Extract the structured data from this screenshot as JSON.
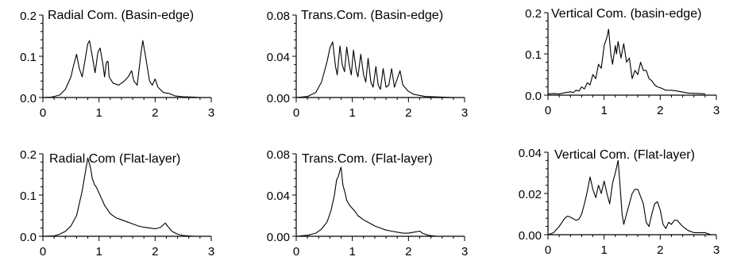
{
  "chart_data": [
    {
      "type": "line",
      "title": "Radial Com. (Basin-edge)",
      "xlim": [
        0,
        3
      ],
      "ylim": [
        0,
        0.2
      ],
      "xticks": [
        0,
        1,
        2,
        3
      ],
      "yticks": [
        0.0,
        0.1,
        0.2
      ],
      "x_tick_labels": [
        "0",
        "1",
        "2",
        "3"
      ],
      "y_tick_labels": [
        "0.0",
        "0.1",
        "0.2"
      ],
      "series": [
        {
          "points": [
            [
              0,
              0
            ],
            [
              0.15,
              0.001
            ],
            [
              0.3,
              0.006
            ],
            [
              0.4,
              0.02
            ],
            [
              0.5,
              0.05
            ],
            [
              0.55,
              0.08
            ],
            [
              0.6,
              0.105
            ],
            [
              0.65,
              0.07
            ],
            [
              0.7,
              0.05
            ],
            [
              0.75,
              0.09
            ],
            [
              0.8,
              0.13
            ],
            [
              0.83,
              0.138
            ],
            [
              0.88,
              0.1
            ],
            [
              0.93,
              0.06
            ],
            [
              0.98,
              0.11
            ],
            [
              1.02,
              0.12
            ],
            [
              1.07,
              0.08
            ],
            [
              1.1,
              0.05
            ],
            [
              1.13,
              0.085
            ],
            [
              1.16,
              0.088
            ],
            [
              1.18,
              0.05
            ],
            [
              1.25,
              0.035
            ],
            [
              1.35,
              0.03
            ],
            [
              1.45,
              0.04
            ],
            [
              1.52,
              0.05
            ],
            [
              1.58,
              0.065
            ],
            [
              1.62,
              0.04
            ],
            [
              1.68,
              0.03
            ],
            [
              1.75,
              0.11
            ],
            [
              1.78,
              0.138
            ],
            [
              1.83,
              0.1
            ],
            [
              1.9,
              0.04
            ],
            [
              1.95,
              0.03
            ],
            [
              2.0,
              0.045
            ],
            [
              2.05,
              0.025
            ],
            [
              2.15,
              0.012
            ],
            [
              2.25,
              0.01
            ],
            [
              2.35,
              0.004
            ],
            [
              2.5,
              0.002
            ],
            [
              2.7,
              0.001
            ],
            [
              2.8,
              0
            ]
          ]
        }
      ]
    },
    {
      "type": "line",
      "title": "Trans.Com. (Basin-edge)",
      "xlim": [
        0,
        3
      ],
      "ylim": [
        0,
        0.08
      ],
      "xticks": [
        0,
        1,
        2,
        3
      ],
      "yticks": [
        0.0,
        0.04,
        0.08
      ],
      "x_tick_labels": [
        "0",
        "1",
        "2",
        "3"
      ],
      "y_tick_labels": [
        "0.00",
        "0.04",
        "0.08"
      ],
      "series": [
        {
          "points": [
            [
              0,
              0
            ],
            [
              0.2,
              0.001
            ],
            [
              0.35,
              0.005
            ],
            [
              0.45,
              0.015
            ],
            [
              0.55,
              0.035
            ],
            [
              0.6,
              0.048
            ],
            [
              0.65,
              0.054
            ],
            [
              0.7,
              0.03
            ],
            [
              0.73,
              0.022
            ],
            [
              0.78,
              0.05
            ],
            [
              0.82,
              0.032
            ],
            [
              0.86,
              0.025
            ],
            [
              0.9,
              0.049
            ],
            [
              0.95,
              0.03
            ],
            [
              0.98,
              0.022
            ],
            [
              1.02,
              0.046
            ],
            [
              1.07,
              0.026
            ],
            [
              1.1,
              0.02
            ],
            [
              1.15,
              0.042
            ],
            [
              1.2,
              0.022
            ],
            [
              1.24,
              0.015
            ],
            [
              1.28,
              0.038
            ],
            [
              1.33,
              0.015
            ],
            [
              1.37,
              0.01
            ],
            [
              1.42,
              0.03
            ],
            [
              1.46,
              0.012
            ],
            [
              1.5,
              0.008
            ],
            [
              1.55,
              0.028
            ],
            [
              1.6,
              0.01
            ],
            [
              1.65,
              0.012
            ],
            [
              1.7,
              0.028
            ],
            [
              1.75,
              0.01
            ],
            [
              1.78,
              0.015
            ],
            [
              1.85,
              0.026
            ],
            [
              1.9,
              0.012
            ],
            [
              2.0,
              0.006
            ],
            [
              2.1,
              0.003
            ],
            [
              2.3,
              0.001
            ],
            [
              2.8,
              0
            ]
          ]
        }
      ]
    },
    {
      "type": "line",
      "title": "Vertical Com. (basin-edge)",
      "xlim": [
        0,
        3
      ],
      "ylim": [
        0,
        0.2
      ],
      "xticks": [
        0,
        1,
        2,
        3
      ],
      "yticks": [
        0.0,
        0.1,
        0.2
      ],
      "x_tick_labels": [
        "0",
        "1",
        "2",
        "3"
      ],
      "y_tick_labels": [
        "0.0",
        "0.1",
        "0.2"
      ],
      "series": [
        {
          "points": [
            [
              0,
              0.003
            ],
            [
              0.1,
              0.004
            ],
            [
              0.2,
              0.003
            ],
            [
              0.3,
              0.006
            ],
            [
              0.4,
              0.008
            ],
            [
              0.45,
              0.006
            ],
            [
              0.5,
              0.012
            ],
            [
              0.55,
              0.01
            ],
            [
              0.6,
              0.02
            ],
            [
              0.65,
              0.015
            ],
            [
              0.7,
              0.03
            ],
            [
              0.75,
              0.025
            ],
            [
              0.8,
              0.05
            ],
            [
              0.85,
              0.04
            ],
            [
              0.9,
              0.075
            ],
            [
              0.95,
              0.065
            ],
            [
              1.0,
              0.12
            ],
            [
              1.05,
              0.14
            ],
            [
              1.08,
              0.16
            ],
            [
              1.12,
              0.1
            ],
            [
              1.15,
              0.075
            ],
            [
              1.2,
              0.12
            ],
            [
              1.22,
              0.1
            ],
            [
              1.25,
              0.13
            ],
            [
              1.3,
              0.09
            ],
            [
              1.35,
              0.125
            ],
            [
              1.4,
              0.08
            ],
            [
              1.45,
              0.09
            ],
            [
              1.5,
              0.04
            ],
            [
              1.55,
              0.06
            ],
            [
              1.6,
              0.05
            ],
            [
              1.65,
              0.08
            ],
            [
              1.7,
              0.06
            ],
            [
              1.75,
              0.06
            ],
            [
              1.8,
              0.04
            ],
            [
              1.85,
              0.035
            ],
            [
              1.9,
              0.025
            ],
            [
              1.95,
              0.02
            ],
            [
              2.0,
              0.018
            ],
            [
              2.1,
              0.012
            ],
            [
              2.2,
              0.012
            ],
            [
              2.3,
              0.01
            ],
            [
              2.5,
              0.005
            ],
            [
              2.7,
              0.004
            ],
            [
              2.8,
              0.003
            ]
          ]
        }
      ]
    },
    {
      "type": "line",
      "title": "Radial Com (Flat-layer)",
      "xlim": [
        0,
        3
      ],
      "ylim": [
        0,
        0.2
      ],
      "xticks": [
        0,
        1,
        2,
        3
      ],
      "yticks": [
        0.0,
        0.1,
        0.2
      ],
      "x_tick_labels": [
        "0",
        "1",
        "2",
        "3"
      ],
      "y_tick_labels": [
        "0.0",
        "0.1",
        "0.2"
      ],
      "series": [
        {
          "points": [
            [
              0,
              0
            ],
            [
              0.2,
              0.001
            ],
            [
              0.3,
              0.005
            ],
            [
              0.4,
              0.012
            ],
            [
              0.5,
              0.025
            ],
            [
              0.6,
              0.05
            ],
            [
              0.7,
              0.11
            ],
            [
              0.75,
              0.15
            ],
            [
              0.8,
              0.19
            ],
            [
              0.85,
              0.165
            ],
            [
              0.88,
              0.14
            ],
            [
              0.92,
              0.125
            ],
            [
              0.95,
              0.12
            ],
            [
              1.0,
              0.105
            ],
            [
              1.05,
              0.09
            ],
            [
              1.1,
              0.075
            ],
            [
              1.15,
              0.065
            ],
            [
              1.2,
              0.055
            ],
            [
              1.3,
              0.045
            ],
            [
              1.4,
              0.04
            ],
            [
              1.5,
              0.035
            ],
            [
              1.6,
              0.03
            ],
            [
              1.7,
              0.025
            ],
            [
              1.8,
              0.022
            ],
            [
              1.9,
              0.02
            ],
            [
              2.0,
              0.018
            ],
            [
              2.1,
              0.022
            ],
            [
              2.18,
              0.032
            ],
            [
              2.22,
              0.025
            ],
            [
              2.3,
              0.012
            ],
            [
              2.4,
              0.005
            ],
            [
              2.5,
              0.002
            ],
            [
              2.6,
              0.001
            ],
            [
              2.7,
              0
            ]
          ]
        }
      ]
    },
    {
      "type": "line",
      "title": "Trans.Com. (Flat-layer)",
      "xlim": [
        0,
        3
      ],
      "ylim": [
        0,
        0.08
      ],
      "xticks": [
        0,
        1,
        2,
        3
      ],
      "yticks": [
        0.0,
        0.04,
        0.08
      ],
      "x_tick_labels": [
        "0",
        "1",
        "2",
        "3"
      ],
      "y_tick_labels": [
        "0.00",
        "0.04",
        "0.08"
      ],
      "series": [
        {
          "points": [
            [
              0,
              0
            ],
            [
              0.2,
              0.001
            ],
            [
              0.35,
              0.003
            ],
            [
              0.45,
              0.007
            ],
            [
              0.55,
              0.014
            ],
            [
              0.62,
              0.025
            ],
            [
              0.68,
              0.04
            ],
            [
              0.72,
              0.055
            ],
            [
              0.75,
              0.058
            ],
            [
              0.78,
              0.064
            ],
            [
              0.8,
              0.067
            ],
            [
              0.83,
              0.05
            ],
            [
              0.87,
              0.042
            ],
            [
              0.9,
              0.035
            ],
            [
              0.95,
              0.03
            ],
            [
              1.0,
              0.027
            ],
            [
              1.05,
              0.024
            ],
            [
              1.1,
              0.02
            ],
            [
              1.2,
              0.016
            ],
            [
              1.3,
              0.013
            ],
            [
              1.4,
              0.01
            ],
            [
              1.5,
              0.008
            ],
            [
              1.6,
              0.006
            ],
            [
              1.7,
              0.005
            ],
            [
              1.8,
              0.004
            ],
            [
              1.9,
              0.003
            ],
            [
              2.0,
              0.003
            ],
            [
              2.1,
              0.004
            ],
            [
              2.2,
              0.005
            ],
            [
              2.25,
              0.003
            ],
            [
              2.35,
              0.001
            ],
            [
              2.5,
              0
            ]
          ]
        }
      ]
    },
    {
      "type": "line",
      "title": "Vertical Com. (Flat-layer)",
      "xlim": [
        0,
        3
      ],
      "ylim": [
        0,
        0.04
      ],
      "xticks": [
        0,
        1,
        2,
        3
      ],
      "yticks": [
        0.0,
        0.02,
        0.04
      ],
      "x_tick_labels": [
        "0",
        "1",
        "2",
        "3"
      ],
      "y_tick_labels": [
        "0.00",
        "0.02",
        "0.04"
      ],
      "series": [
        {
          "points": [
            [
              0,
              0
            ],
            [
              0.1,
              0.001
            ],
            [
              0.2,
              0.004
            ],
            [
              0.3,
              0.008
            ],
            [
              0.35,
              0.009
            ],
            [
              0.4,
              0.0085
            ],
            [
              0.5,
              0.007
            ],
            [
              0.55,
              0.0075
            ],
            [
              0.6,
              0.01
            ],
            [
              0.65,
              0.015
            ],
            [
              0.7,
              0.021
            ],
            [
              0.75,
              0.028
            ],
            [
              0.8,
              0.022
            ],
            [
              0.85,
              0.018
            ],
            [
              0.9,
              0.024
            ],
            [
              0.95,
              0.02
            ],
            [
              1.0,
              0.026
            ],
            [
              1.05,
              0.02
            ],
            [
              1.1,
              0.015
            ],
            [
              1.15,
              0.025
            ],
            [
              1.2,
              0.03
            ],
            [
              1.25,
              0.036
            ],
            [
              1.28,
              0.025
            ],
            [
              1.32,
              0.01
            ],
            [
              1.35,
              0.005
            ],
            [
              1.4,
              0.01
            ],
            [
              1.5,
              0.02
            ],
            [
              1.55,
              0.022
            ],
            [
              1.6,
              0.022
            ],
            [
              1.7,
              0.015
            ],
            [
              1.75,
              0.006
            ],
            [
              1.8,
              0.004
            ],
            [
              1.85,
              0.01
            ],
            [
              1.9,
              0.015
            ],
            [
              1.95,
              0.016
            ],
            [
              2.0,
              0.012
            ],
            [
              2.05,
              0.005
            ],
            [
              2.1,
              0.003
            ],
            [
              2.15,
              0.006
            ],
            [
              2.2,
              0.005
            ],
            [
              2.25,
              0.007
            ],
            [
              2.3,
              0.007
            ],
            [
              2.4,
              0.004
            ],
            [
              2.5,
              0.002
            ],
            [
              2.6,
              0.001
            ],
            [
              2.8,
              0.001
            ],
            [
              2.9,
              0
            ]
          ]
        }
      ]
    }
  ]
}
